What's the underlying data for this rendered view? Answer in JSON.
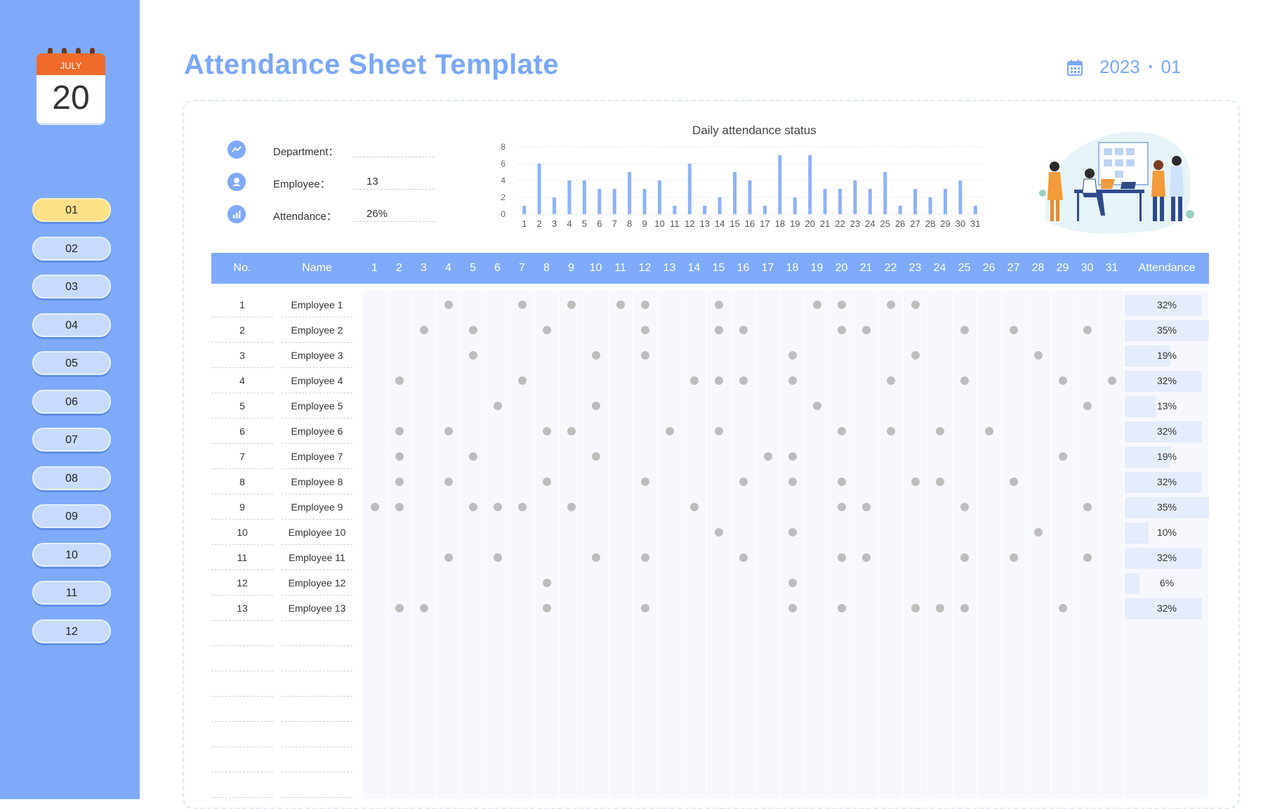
{
  "sidebar": {
    "calendar": {
      "month": "JULY",
      "day": "20"
    },
    "months": [
      "01",
      "02",
      "03",
      "04",
      "05",
      "06",
      "07",
      "08",
      "09",
      "10",
      "11",
      "12"
    ],
    "active_month_index": 0
  },
  "header": {
    "title": "Attendance Sheet Template",
    "year": "2023",
    "separator": "•",
    "month": "01"
  },
  "info": {
    "department_label": "Department：",
    "department_value": "",
    "employee_label": "Employee：",
    "employee_value": "13",
    "attendance_label": "Attendance：",
    "attendance_value": "26%"
  },
  "chart_data": {
    "type": "bar",
    "title": "Daily attendance status",
    "categories": [
      "1",
      "2",
      "3",
      "4",
      "5",
      "6",
      "7",
      "8",
      "9",
      "10",
      "11",
      "12",
      "13",
      "14",
      "15",
      "16",
      "17",
      "18",
      "19",
      "20",
      "21",
      "22",
      "23",
      "24",
      "25",
      "26",
      "27",
      "28",
      "29",
      "30",
      "31"
    ],
    "values": [
      1,
      6,
      2,
      4,
      4,
      3,
      3,
      5,
      3,
      4,
      1,
      6,
      1,
      2,
      5,
      4,
      1,
      7,
      2,
      7,
      3,
      3,
      4,
      3,
      5,
      1,
      3,
      2,
      3,
      4,
      1
    ],
    "ylim": [
      0,
      8
    ],
    "yticks": [
      "0",
      "2",
      "4",
      "6",
      "8"
    ],
    "grid": true
  },
  "table": {
    "headers": {
      "no": "No.",
      "name": "Name",
      "attendance": "Attendance"
    },
    "days": [
      "1",
      "2",
      "3",
      "4",
      "5",
      "6",
      "7",
      "8",
      "9",
      "10",
      "11",
      "12",
      "13",
      "14",
      "15",
      "16",
      "17",
      "18",
      "19",
      "20",
      "21",
      "22",
      "23",
      "24",
      "25",
      "26",
      "27",
      "28",
      "29",
      "30",
      "31"
    ],
    "rows": [
      {
        "no": "1",
        "name": "Employee 1",
        "attendance": "32%",
        "rate": 0.32,
        "marks": [
          4,
          7,
          9,
          11,
          12,
          15,
          19,
          20,
          22,
          23
        ]
      },
      {
        "no": "2",
        "name": "Employee 2",
        "attendance": "35%",
        "rate": 0.35,
        "marks": [
          3,
          5,
          8,
          12,
          15,
          16,
          20,
          21,
          25,
          27,
          30
        ]
      },
      {
        "no": "3",
        "name": "Employee 3",
        "attendance": "19%",
        "rate": 0.19,
        "marks": [
          5,
          10,
          12,
          18,
          23,
          28
        ]
      },
      {
        "no": "4",
        "name": "Employee 4",
        "attendance": "32%",
        "rate": 0.32,
        "marks": [
          2,
          7,
          14,
          15,
          16,
          18,
          22,
          25,
          29,
          31
        ]
      },
      {
        "no": "5",
        "name": "Employee 5",
        "attendance": "13%",
        "rate": 0.13,
        "marks": [
          6,
          10,
          19,
          30
        ]
      },
      {
        "no": "6",
        "name": "Employee 6",
        "attendance": "32%",
        "rate": 0.32,
        "marks": [
          2,
          4,
          8,
          9,
          13,
          15,
          20,
          22,
          24,
          26
        ]
      },
      {
        "no": "7",
        "name": "Employee 7",
        "attendance": "19%",
        "rate": 0.19,
        "marks": [
          2,
          5,
          10,
          17,
          18,
          29
        ]
      },
      {
        "no": "8",
        "name": "Employee 8",
        "attendance": "32%",
        "rate": 0.32,
        "marks": [
          2,
          4,
          8,
          12,
          16,
          18,
          20,
          23,
          24,
          27
        ]
      },
      {
        "no": "9",
        "name": "Employee 9",
        "attendance": "35%",
        "rate": 0.35,
        "marks": [
          1,
          2,
          5,
          6,
          7,
          9,
          14,
          20,
          21,
          25,
          30
        ]
      },
      {
        "no": "10",
        "name": "Employee 10",
        "attendance": "10%",
        "rate": 0.1,
        "marks": [
          15,
          18,
          28
        ]
      },
      {
        "no": "11",
        "name": "Employee 11",
        "attendance": "32%",
        "rate": 0.32,
        "marks": [
          4,
          6,
          10,
          12,
          16,
          20,
          21,
          25,
          27,
          30
        ]
      },
      {
        "no": "12",
        "name": "Employee 12",
        "attendance": "6%",
        "rate": 0.06,
        "marks": [
          8,
          18
        ]
      },
      {
        "no": "13",
        "name": "Employee 13",
        "attendance": "32%",
        "rate": 0.32,
        "marks": [
          2,
          3,
          8,
          12,
          18,
          20,
          23,
          24,
          25,
          29
        ]
      }
    ]
  },
  "colors": {
    "sidebar": "#7eaaf9",
    "accent": "#7aa8f9",
    "bar": "#8db3f7",
    "active_month": "#fde088",
    "dot": "#bdbdbd",
    "calendar_header": "#f06a2a"
  }
}
